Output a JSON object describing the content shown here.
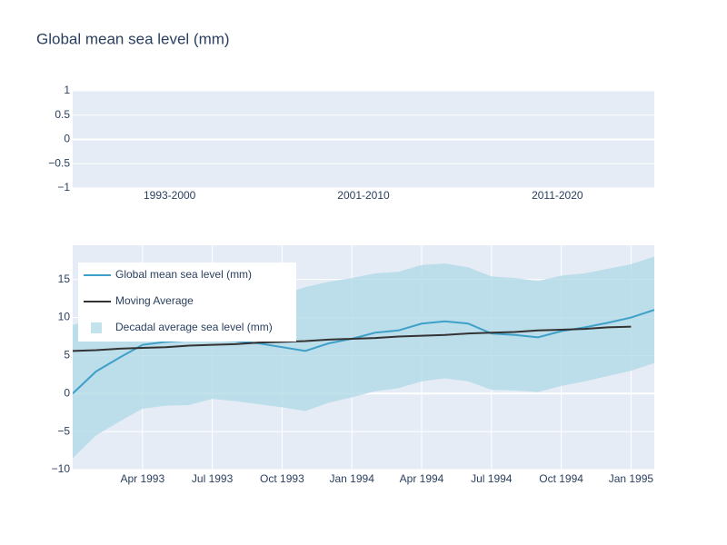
{
  "chart_data": [
    {
      "type": "bar",
      "title": "Global mean sea level (mm)",
      "categories": [
        "1993-2000",
        "2001-2010",
        "2011-2020"
      ],
      "ylim": [
        -1,
        1
      ],
      "yticks": [
        1,
        0.5,
        0,
        {
          "value": -0.5,
          "label": "−0.5"
        },
        {
          "value": -1,
          "label": "−1"
        }
      ],
      "grid": true
    },
    {
      "type": "line",
      "x": [
        "1993-01",
        "1993-02",
        "1993-03",
        "1993-04",
        "1993-05",
        "1993-06",
        "1993-07",
        "1993-08",
        "1993-09",
        "1993-10",
        "1993-11",
        "1993-12",
        "1994-01",
        "1994-02",
        "1994-03",
        "1994-04",
        "1994-05",
        "1994-06",
        "1994-07",
        "1994-08",
        "1994-09",
        "1994-10",
        "1994-11",
        "1994-12",
        "1995-01",
        "1995-02"
      ],
      "xlim": [
        "1993-01",
        "1995-02"
      ],
      "xticks": [
        {
          "value": "1993-04",
          "label": "Apr 1993"
        },
        {
          "value": "1993-07",
          "label": "Jul 1993"
        },
        {
          "value": "1993-10",
          "label": "Oct 1993"
        },
        {
          "value": "1994-01",
          "label": "Jan 1994"
        },
        {
          "value": "1994-04",
          "label": "Apr 1994"
        },
        {
          "value": "1994-07",
          "label": "Jul 1994"
        },
        {
          "value": "1994-10",
          "label": "Oct 1994"
        },
        {
          "value": "1995-01",
          "label": "Jan 1995"
        }
      ],
      "ylim": [
        -10,
        19.5
      ],
      "yticks": [
        15,
        10,
        5,
        0,
        {
          "value": -5,
          "label": "−5"
        },
        {
          "value": -10,
          "label": "−10"
        }
      ],
      "grid": true,
      "legend": "top-left",
      "series": [
        {
          "name": "Global mean sea level (mm)",
          "color": "#3ea0c8",
          "values": [
            0,
            2.9,
            4.7,
            6.4,
            6.8,
            7.0,
            7.0,
            6.9,
            6.6,
            6.1,
            5.6,
            6.6,
            7.2,
            8.0,
            8.3,
            9.2,
            9.5,
            9.2,
            7.9,
            7.7,
            7.4,
            8.2,
            8.7,
            9.3,
            10.0,
            11.0
          ]
        },
        {
          "name": "Moving Average",
          "color": "#333333",
          "values": [
            5.6,
            5.7,
            5.9,
            6.0,
            6.1,
            6.3,
            6.4,
            6.5,
            6.7,
            6.8,
            6.9,
            7.1,
            7.2,
            7.3,
            7.5,
            7.6,
            7.7,
            7.9,
            8.0,
            8.1,
            8.3,
            8.4,
            8.5,
            8.7,
            8.8,
            null
          ]
        },
        {
          "name": "Decadal average sea level (mm)",
          "color": "#add8e6",
          "opacity": 0.75,
          "band": true,
          "upper": [
            9,
            10,
            11,
            12,
            12.5,
            13,
            13,
            13,
            13,
            13,
            14,
            14.7,
            15.2,
            15.8,
            16.0,
            16.9,
            17.1,
            16.6,
            15.4,
            15.2,
            14.8,
            15.5,
            15.8,
            16.4,
            17.0,
            18.0
          ],
          "lower": [
            -8.5,
            -5.5,
            -3.7,
            -2,
            -1.6,
            -1.5,
            -0.7,
            -1.0,
            -1.4,
            -1.8,
            -2.3,
            -1.2,
            -0.5,
            0.3,
            0.7,
            1.6,
            2.0,
            1.6,
            0.5,
            0.4,
            0.2,
            1.0,
            1.6,
            2.3,
            3.0,
            4.0
          ]
        }
      ]
    }
  ]
}
